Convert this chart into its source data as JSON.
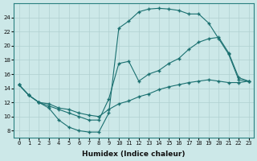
{
  "xlabel": "Humidex (Indice chaleur)",
  "bg_color": "#cce8e8",
  "grid_color": "#b0d0d0",
  "line_color": "#1a7070",
  "xlim": [
    -0.5,
    23.5
  ],
  "ylim": [
    7,
    26
  ],
  "xticks": [
    0,
    1,
    2,
    3,
    4,
    5,
    6,
    7,
    8,
    9,
    10,
    11,
    12,
    13,
    14,
    15,
    16,
    17,
    18,
    19,
    20,
    21,
    22,
    23
  ],
  "yticks": [
    8,
    10,
    12,
    14,
    16,
    18,
    20,
    22,
    24
  ],
  "line1_x": [
    0,
    1,
    2,
    3,
    4,
    5,
    6,
    7,
    8,
    9,
    10,
    11,
    12,
    13,
    14,
    15,
    16,
    17,
    18,
    19,
    20,
    21,
    22,
    23
  ],
  "line1_y": [
    14.5,
    13.0,
    12.0,
    11.2,
    9.5,
    8.5,
    8.0,
    7.8,
    7.8,
    10.5,
    22.5,
    23.5,
    24.8,
    25.2,
    25.3,
    25.2,
    25.0,
    24.5,
    24.5,
    23.2,
    21.0,
    18.8,
    15.2,
    15.0
  ],
  "line2_x": [
    0,
    1,
    2,
    3,
    4,
    5,
    6,
    7,
    8,
    9,
    10,
    11,
    12,
    13,
    14,
    15,
    16,
    17,
    18,
    19,
    20,
    21,
    22,
    23
  ],
  "line2_y": [
    14.5,
    13.0,
    12.0,
    11.5,
    11.0,
    10.5,
    10.0,
    9.5,
    9.5,
    12.5,
    17.5,
    17.8,
    15.0,
    16.0,
    16.5,
    17.5,
    18.2,
    19.5,
    20.5,
    21.0,
    21.2,
    19.0,
    15.5,
    15.0
  ],
  "line3_x": [
    0,
    1,
    2,
    3,
    4,
    5,
    6,
    7,
    8,
    9,
    10,
    11,
    12,
    13,
    14,
    15,
    16,
    17,
    18,
    19,
    20,
    21,
    22,
    23
  ],
  "line3_y": [
    14.5,
    13.0,
    12.0,
    11.8,
    11.2,
    11.0,
    10.5,
    10.2,
    10.0,
    11.0,
    11.8,
    12.2,
    12.8,
    13.2,
    13.8,
    14.2,
    14.5,
    14.8,
    15.0,
    15.2,
    15.0,
    14.8,
    14.8,
    15.0
  ]
}
